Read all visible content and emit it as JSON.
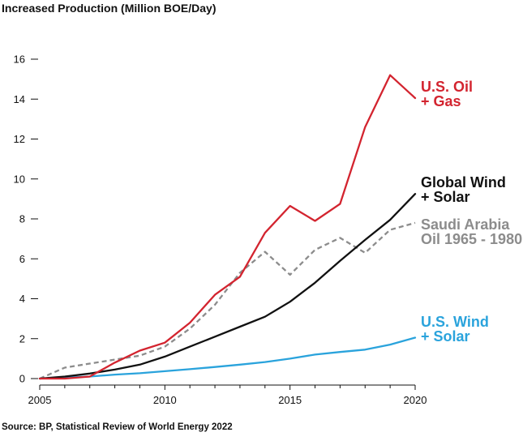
{
  "chart_data": {
    "type": "line",
    "title": "Increased Production (Million BOE/Day)",
    "source": "Source: BP, Statistical Review of World Energy 2022",
    "xlim": [
      2005,
      2020
    ],
    "ylim": [
      0,
      16
    ],
    "x_ticks": [
      2005,
      2010,
      2015,
      2020
    ],
    "y_ticks": [
      0,
      2,
      4,
      6,
      8,
      10,
      12,
      14,
      16
    ],
    "grid": false,
    "series": [
      {
        "name_lines": [
          "U.S. Oil",
          "+ Gas"
        ],
        "color": "#d3242f",
        "dashed": false,
        "points": [
          [
            2005,
            0
          ],
          [
            2006,
            0.0
          ],
          [
            2007,
            0.1
          ],
          [
            2008,
            0.8
          ],
          [
            2009,
            1.4
          ],
          [
            2010,
            1.8
          ],
          [
            2011,
            2.8
          ],
          [
            2012,
            4.2
          ],
          [
            2013,
            5.1
          ],
          [
            2014,
            7.3
          ],
          [
            2015,
            8.65
          ],
          [
            2016,
            7.9
          ],
          [
            2017,
            8.75
          ],
          [
            2018,
            12.6
          ],
          [
            2019,
            15.2
          ],
          [
            2020,
            14.05
          ]
        ]
      },
      {
        "name_lines": [
          "Global Wind",
          "+ Solar"
        ],
        "color": "#111111",
        "dashed": false,
        "points": [
          [
            2005,
            0
          ],
          [
            2006,
            0.1
          ],
          [
            2007,
            0.25
          ],
          [
            2008,
            0.45
          ],
          [
            2009,
            0.7
          ],
          [
            2010,
            1.1
          ],
          [
            2011,
            1.6
          ],
          [
            2012,
            2.1
          ],
          [
            2013,
            2.6
          ],
          [
            2014,
            3.1
          ],
          [
            2015,
            3.85
          ],
          [
            2016,
            4.8
          ],
          [
            2017,
            5.9
          ],
          [
            2018,
            6.95
          ],
          [
            2019,
            7.95
          ],
          [
            2020,
            9.25
          ]
        ]
      },
      {
        "name_lines": [
          "Saudi Arabia",
          "Oil 1965 - 1980"
        ],
        "color": "#8c8c8c",
        "dashed": true,
        "points": [
          [
            2005,
            0
          ],
          [
            2006,
            0.55
          ],
          [
            2007,
            0.75
          ],
          [
            2008,
            0.95
          ],
          [
            2009,
            1.15
          ],
          [
            2010,
            1.6
          ],
          [
            2011,
            2.5
          ],
          [
            2012,
            3.7
          ],
          [
            2013,
            5.3
          ],
          [
            2014,
            6.35
          ],
          [
            2015,
            5.2
          ],
          [
            2016,
            6.45
          ],
          [
            2017,
            7.05
          ],
          [
            2018,
            6.3
          ],
          [
            2019,
            7.45
          ],
          [
            2020,
            7.8
          ]
        ]
      },
      {
        "name_lines": [
          "U.S. Wind",
          "+ Solar"
        ],
        "color": "#2aa3dc",
        "dashed": false,
        "points": [
          [
            2005,
            0
          ],
          [
            2006,
            0.05
          ],
          [
            2007,
            0.1
          ],
          [
            2008,
            0.2
          ],
          [
            2009,
            0.27
          ],
          [
            2010,
            0.37
          ],
          [
            2011,
            0.47
          ],
          [
            2012,
            0.58
          ],
          [
            2013,
            0.7
          ],
          [
            2014,
            0.83
          ],
          [
            2015,
            1.0
          ],
          [
            2016,
            1.2
          ],
          [
            2017,
            1.33
          ],
          [
            2018,
            1.45
          ],
          [
            2019,
            1.7
          ],
          [
            2020,
            2.05
          ]
        ]
      }
    ]
  }
}
